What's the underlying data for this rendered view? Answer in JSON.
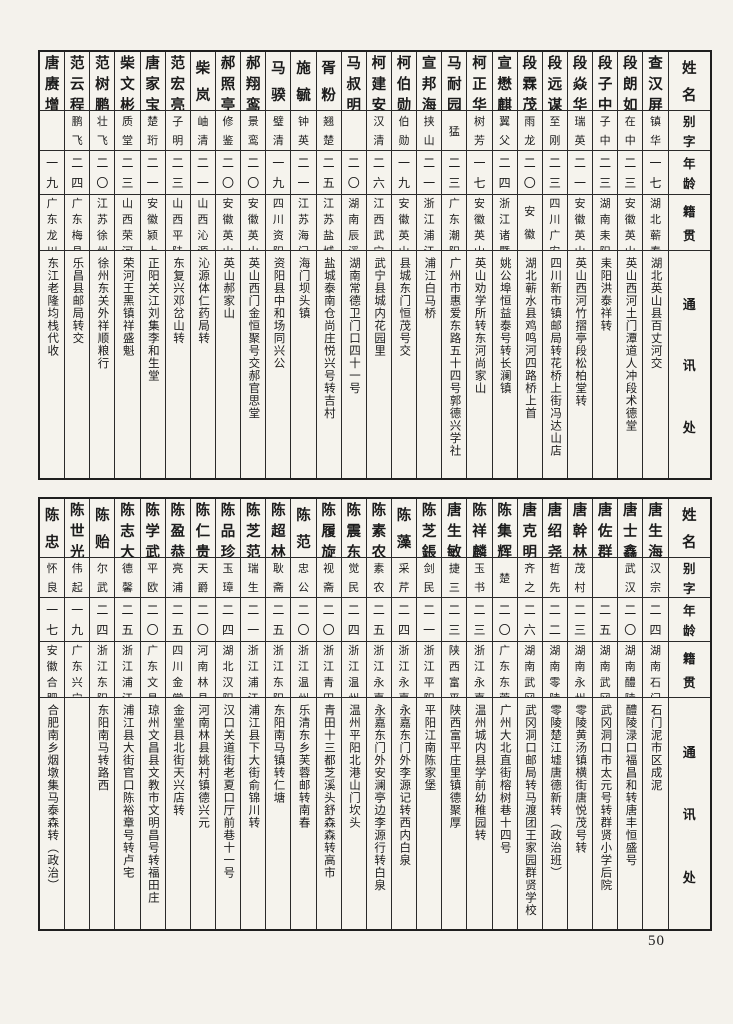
{
  "page": {
    "number": "50"
  },
  "headers": {
    "name": "姓名",
    "zi": "别字",
    "age": "年龄",
    "native": "籍贯",
    "addr": "通讯处"
  },
  "tables": [
    {
      "id": "top",
      "entries_order": "left-to-right as printed (document reads right-to-left)",
      "entries": [
        {
          "name": "唐赓增",
          "zi": "",
          "age": "一九",
          "native": "广东龙川",
          "addr": "东江老隆均栈代收"
        },
        {
          "name": "范云程",
          "zi": "鹏飞",
          "age": "二四",
          "native": "广东梅县",
          "addr": "乐昌县邮局转交"
        },
        {
          "name": "范树鹏",
          "zi": "壮飞",
          "age": "二〇",
          "native": "江苏徐州",
          "addr": "徐州东关外祥顺粮行"
        },
        {
          "name": "柴文彬",
          "zi": "质堂",
          "age": "二三",
          "native": "山西荣河",
          "addr": "荣河王黑镇祥盛魁"
        },
        {
          "name": "唐家宝",
          "zi": "楚珩",
          "age": "二一",
          "native": "安徽颍上",
          "addr": "正阳关江刘集李和生堂"
        },
        {
          "name": "范宏亮",
          "zi": "子明",
          "age": "二三",
          "native": "山西平陆",
          "addr": "东复兴邓岔山转"
        },
        {
          "name": "柴岚",
          "zi": "岫清",
          "age": "二一",
          "native": "山西沁源",
          "addr": "沁源体仁药局转"
        },
        {
          "name": "郝照亭",
          "zi": "修鉴",
          "age": "二〇",
          "native": "安徽英山",
          "addr": "英山郝家山"
        },
        {
          "name": "郝翔鸾",
          "zi": "景鸾",
          "age": "二〇",
          "native": "安徽英山",
          "addr": "英山西门金恒聚号交郝官思堂"
        },
        {
          "name": "马骙",
          "zi": "璧清",
          "age": "一九",
          "native": "四川资阳",
          "addr": "资阳县中和场同兴公"
        },
        {
          "name": "施毓",
          "zi": "钟英",
          "age": "二一",
          "native": "江苏海门",
          "addr": "海门坝头镇"
        },
        {
          "name": "胥粉",
          "zi": "翘楚",
          "age": "二五",
          "native": "江苏盐城",
          "addr": "盐城泰南仓尚庄悦兴号转吉村"
        },
        {
          "name": "马叔明",
          "zi": "",
          "age": "二〇",
          "native": "湖南辰溪",
          "addr": "湖南常德卫门口四十一号"
        },
        {
          "name": "柯建安",
          "zi": "汉清",
          "age": "二六",
          "native": "江西武宁",
          "addr": "武宁县城内花园里"
        },
        {
          "name": "柯伯勋",
          "zi": "伯勋",
          "age": "一九",
          "native": "安徽英山",
          "addr": "县城东门恒茂号交"
        },
        {
          "name": "宣邦海",
          "zi": "挟山",
          "age": "二一",
          "native": "浙江浦江",
          "addr": "浦江白马桥"
        },
        {
          "name": "马耐园",
          "zi": "猛",
          "age": "二三",
          "native": "广东潮阳",
          "addr": "广州市惠爱东路五十四号郭德兴学社"
        },
        {
          "name": "柯正华",
          "zi": "树芳",
          "age": "一七",
          "native": "安徽英山",
          "addr": "英山劝学所转东河尚家山"
        },
        {
          "name": "宣懋麒",
          "zi": "翼父",
          "age": "二四",
          "native": "浙江诸暨",
          "addr": "姚公埠恒益泰号转长澜镇"
        },
        {
          "name": "段霖茂",
          "zi": "雨龙",
          "age": "二〇",
          "native": "安徽",
          "addr": "湖北蕲水县鸡鸣河四路桥上首"
        },
        {
          "name": "段远谋",
          "zi": "至刚",
          "age": "二三",
          "native": "四川广安",
          "addr": "四川新市镇邮局转花桥上街冯达山店"
        },
        {
          "name": "段焱华",
          "zi": "瑞英",
          "age": "二一",
          "native": "安徽英山",
          "addr": "英山西河竹摺亭段松柏堂转"
        },
        {
          "name": "段子中",
          "zi": "子中",
          "age": "二三",
          "native": "湖南耒阳",
          "addr": "耒阳洪泰祥转"
        },
        {
          "name": "段朗如",
          "zi": "在中",
          "age": "二三",
          "native": "安徽英山",
          "addr": "英山西河土门潭道人冲段术德堂"
        },
        {
          "name": "查汉屏",
          "zi": "镇华",
          "age": "一七",
          "native": "湖北蕲春",
          "addr": "湖北英山县百丈河交"
        }
      ]
    },
    {
      "id": "bottom",
      "entries_order": "left-to-right as printed (document reads right-to-left)",
      "entries": [
        {
          "name": "陈忠",
          "zi": "怀良",
          "age": "一七",
          "native": "安徽合肥",
          "addr": "合肥南乡烟墩集马泰森转（政治）"
        },
        {
          "name": "陈世光",
          "zi": "伟起",
          "age": "一九",
          "native": "广东兴宁",
          "addr": ""
        },
        {
          "name": "陈贻",
          "zi": "尔武",
          "age": "二四",
          "native": "浙江东阳",
          "addr": "东阳南马转路西"
        },
        {
          "name": "陈志大",
          "zi": "德馨",
          "age": "二五",
          "native": "浙江浦江",
          "addr": "浦江县大街官口陈裕章号转卢宅"
        },
        {
          "name": "陈学武",
          "zi": "平欧",
          "age": "二〇",
          "native": "广东文昌",
          "addr": "琼州文昌县文教市文明昌号转福田庄"
        },
        {
          "name": "陈盈恭",
          "zi": "亮浦",
          "age": "二五",
          "native": "四川金堂",
          "addr": "金堂县北街天兴店转"
        },
        {
          "name": "陈仁贵",
          "zi": "天爵",
          "age": "二〇",
          "native": "河南林县",
          "addr": "河南林县姚村镇德兴元"
        },
        {
          "name": "陈品珍",
          "zi": "玉璋",
          "age": "二四",
          "native": "湖北汉阳",
          "addr": "汉口关道街老夏口厅前巷十一号"
        },
        {
          "name": "陈芝范",
          "zi": "瑞生",
          "age": "二一",
          "native": "浙江浦江",
          "addr": "浦江县下大街俞锦川转"
        },
        {
          "name": "陈超林",
          "zi": "耿斋",
          "age": "二五",
          "native": "浙江东阳",
          "addr": "东阳南马镇转仁塘"
        },
        {
          "name": "陈范",
          "zi": "忠公",
          "age": "二〇",
          "native": "浙江温州",
          "addr": "乐清东乡芙蓉邮转南春"
        },
        {
          "name": "陈履旋",
          "zi": "视斋",
          "age": "二〇",
          "native": "浙江青田",
          "addr": "青田十三都芝溪头舒森森转高市"
        },
        {
          "name": "陈震东",
          "zi": "觉民",
          "age": "二四",
          "native": "浙江温州",
          "addr": "温州平阳北港山门坎头"
        },
        {
          "name": "陈素农",
          "zi": "素农",
          "age": "二五",
          "native": "浙江永嘉",
          "addr": "永嘉东门外安澜亭边李源行转白泉"
        },
        {
          "name": "陈藻",
          "zi": "采芹",
          "age": "二四",
          "native": "浙江永嘉",
          "addr": "永嘉东门外李源记转西内白泉"
        },
        {
          "name": "陈芝鋹",
          "zi": "剑民",
          "age": "二一",
          "native": "浙江平阳",
          "addr": "平阳江南陈家堡"
        },
        {
          "name": "唐生敏",
          "zi": "捷三",
          "age": "二三",
          "native": "陕西富平",
          "addr": "陕西富平庄里镇德聚厚"
        },
        {
          "name": "陈祥麟",
          "zi": "玉书",
          "age": "二三",
          "native": "浙江永嘉",
          "addr": "温州城内县学前幼稚园转"
        },
        {
          "name": "陈集辉",
          "zi": "楚",
          "age": "二〇",
          "native": "广东东莞",
          "addr": "广州大北直街榕树巷十四号"
        },
        {
          "name": "唐克明",
          "zi": "齐之",
          "age": "二六",
          "native": "湖南武冈",
          "addr": "武冈洞口邮局转马渡团王家园群贤学校"
        },
        {
          "name": "唐绍尧",
          "zi": "哲先",
          "age": "二二",
          "native": "湖南零陵",
          "addr": "零陵楚江墟唐德新转（政治班）"
        },
        {
          "name": "唐幹林",
          "zi": "茂村",
          "age": "二三",
          "native": "湖南永州",
          "addr": "零陵黄汤镇横街唐悦茂号转"
        },
        {
          "name": "唐佐群",
          "zi": "",
          "age": "二五",
          "native": "湖南武冈",
          "addr": "武冈洞口市太元号转群贤小学后院"
        },
        {
          "name": "唐士鑫",
          "zi": "武汉",
          "age": "二〇",
          "native": "湖南醴陵",
          "addr": "醴陵渌口福昌和转唐丰恒盛号"
        },
        {
          "name": "唐生海",
          "zi": "汉宗",
          "age": "二四",
          "native": "湖南石门",
          "addr": "石门泥市区成泥"
        }
      ]
    }
  ]
}
